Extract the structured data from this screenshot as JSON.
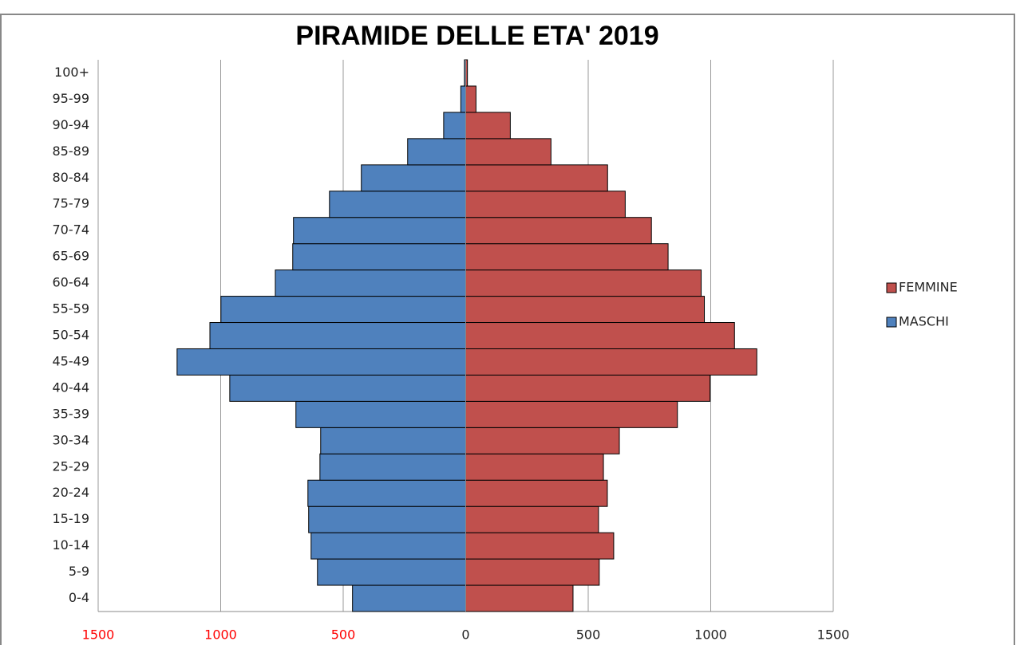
{
  "chart_data": {
    "type": "pyramid",
    "title": "PIRAMIDE DELLE ETA' 2019",
    "categories": [
      "0-4",
      "5-9",
      "10-14",
      "15-19",
      "20-24",
      "25-29",
      "30-34",
      "35-39",
      "40-44",
      "45-49",
      "50-54",
      "55-59",
      "60-64",
      "65-69",
      "70-74",
      "75-79",
      "80-84",
      "85-89",
      "90-94",
      "95-99",
      "100+"
    ],
    "series": [
      {
        "name": "MASCHI",
        "color": "#4f81bd",
        "values": [
          -462,
          -605,
          -631,
          -641,
          -644,
          -595,
          -592,
          -693,
          -963,
          -1178,
          -1044,
          -999,
          -777,
          -706,
          -703,
          -556,
          -426,
          -237,
          -90,
          -20,
          -5
        ]
      },
      {
        "name": "FEMMINE",
        "color": "#c0504d",
        "values": [
          438,
          545,
          604,
          542,
          578,
          562,
          627,
          864,
          997,
          1188,
          1097,
          974,
          961,
          826,
          758,
          651,
          579,
          348,
          182,
          42,
          7
        ]
      }
    ],
    "xlim": [
      -1500,
      1500
    ],
    "xticks": [
      {
        "value": -1500,
        "label": "1500"
      },
      {
        "value": -1000,
        "label": "1000"
      },
      {
        "value": -500,
        "label": "500"
      },
      0,
      500,
      1000,
      1500
    ],
    "negative_tick_color": "#ff0000",
    "grid": true,
    "legend": "right"
  }
}
